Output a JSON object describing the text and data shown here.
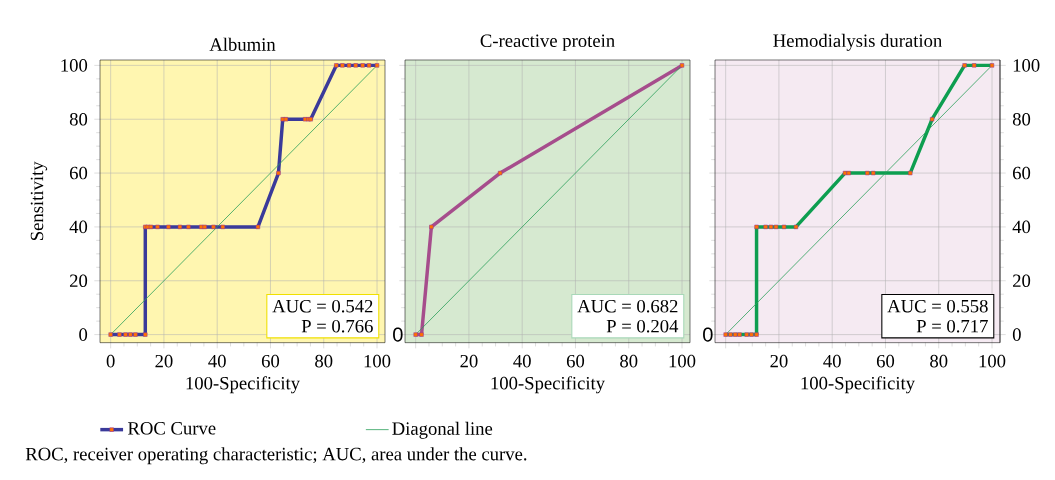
{
  "chart_data": [
    {
      "type": "line",
      "title": "Albumin",
      "xlabel": "100-Specificity",
      "ylabel": "Sensitivity",
      "xlim": [
        -4,
        103
      ],
      "ylim": [
        -3,
        102
      ],
      "xticks": [
        0,
        20,
        40,
        60,
        80,
        100
      ],
      "yticks": [
        0,
        20,
        40,
        60,
        80,
        100
      ],
      "grid": true,
      "legend": "bottom",
      "annotations": [
        "AUC = 0.542",
        "P = 0.766",
        "ROC, receiver operating characteristic; AUC, area under the curve."
      ],
      "series": [
        {
          "name": "ROC Curve",
          "color": "#3a3a9a",
          "marker": "square",
          "x": [
            0,
            3.3,
            5.6,
            7.4,
            9.3,
            13,
            13,
            13.9,
            15.1,
            17.6,
            21.7,
            26,
            29.2,
            34,
            35.3,
            38.6,
            42.1,
            55.3,
            63,
            64.6,
            65.8,
            73,
            74.3,
            75.1,
            84.7,
            87,
            89.5,
            92,
            94.6,
            97,
            100
          ],
          "values": [
            0,
            0,
            0,
            0,
            0,
            0,
            40,
            40,
            40,
            40,
            40,
            40,
            40,
            40,
            40,
            40,
            40,
            40,
            60,
            80,
            80,
            80,
            80,
            80,
            100,
            100,
            100,
            100,
            100,
            100,
            100
          ]
        },
        {
          "name": "Diagonal line",
          "color": "#2ca05a",
          "marker": "none",
          "x": [
            0,
            100
          ],
          "values": [
            0,
            100
          ]
        }
      ]
    },
    {
      "type": "line",
      "title": "C-reactive protein",
      "xlabel": "100-Specificity",
      "xlim": [
        -4,
        103
      ],
      "ylim": [
        -3,
        102
      ],
      "xticks": [
        {
          "value": 0,
          "label": null
        },
        20,
        40,
        60,
        80,
        100
      ],
      "yticks": [
        0,
        20,
        40,
        60,
        80,
        100
      ],
      "tick_labels": "x",
      "grid": true,
      "annotations": [
        "AUC = 0.682",
        "P = 0.204",
        "0"
      ],
      "series": [
        {
          "color": "#a64d8c",
          "marker": "square",
          "x": [
            0,
            2.2,
            5.9,
            31.7,
            100
          ],
          "values": [
            0,
            0,
            40,
            60,
            100
          ]
        },
        {
          "color": "#2ca05a",
          "marker": "none",
          "x": [
            0,
            100
          ],
          "values": [
            0,
            100
          ]
        }
      ]
    },
    {
      "type": "line",
      "title": "Hemodialysis duration",
      "xlabel": "100-Specificity",
      "xlim": [
        -4,
        103
      ],
      "xticks": [
        {
          "value": 0,
          "label": null
        },
        20,
        40,
        60,
        80,
        100
      ],
      "y2lim": [
        -3,
        102
      ],
      "y2ticks": [
        0,
        20,
        40,
        60,
        80,
        100
      ],
      "grid": true,
      "annotations": [
        "AUC = 0.558",
        "P = 0.717",
        "0"
      ],
      "series": [
        {
          "axis": "y2",
          "color": "#0d9e50",
          "marker": "square",
          "x": [
            0,
            1.8,
            3.6,
            5.2,
            7.9,
            9.7,
            11.6,
            11.6,
            15,
            17,
            18.9,
            21.9,
            26.4,
            44.8,
            46.2,
            53.2,
            55.4,
            69.3,
            77.5,
            89.7,
            93.3,
            100
          ],
          "values": [
            0,
            0,
            0,
            0,
            0,
            0,
            0,
            40,
            40,
            40,
            40,
            40,
            40,
            60,
            60,
            60,
            60,
            60,
            80,
            100,
            100,
            100
          ]
        },
        {
          "axis": "y2",
          "color": "#2ca05a",
          "marker": "none",
          "x": [
            0,
            100
          ],
          "values": [
            0,
            100
          ]
        }
      ]
    }
  ]
}
